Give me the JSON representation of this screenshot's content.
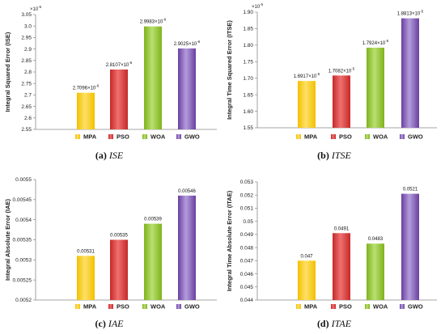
{
  "legend": [
    "MPA",
    "PSO",
    "WOA",
    "GWO"
  ],
  "colors": {
    "MPA": [
      "#ffe066",
      "#f2c000"
    ],
    "PSO": [
      "#f07070",
      "#c62828"
    ],
    "WOA": [
      "#b9e070",
      "#7fb21c"
    ],
    "GWO": [
      "#b39ddb",
      "#6a3fa0"
    ]
  },
  "chart_data": [
    {
      "type": "bar",
      "caption_letter": "(a)",
      "caption_name": "ISE",
      "ylabel": "Integral Squared Error (ISE)",
      "multiplier_base": "×10",
      "multiplier_exp": "-6",
      "categories": [
        "MPA",
        "PSO",
        "WOA",
        "GWO"
      ],
      "values": [
        2.7096,
        2.8107,
        2.9983,
        2.9025
      ],
      "data_labels": [
        {
          "base": "2.7096×10",
          "exp": "-6"
        },
        {
          "base": "2.8107×10",
          "exp": "-6"
        },
        {
          "base": "2.9983×10",
          "exp": "-6"
        },
        {
          "base": "2.9025×10",
          "exp": "-6"
        }
      ],
      "yticks": [
        "2.55",
        "2.6",
        "2.65",
        "2.7",
        "2.75",
        "2.8",
        "2.85",
        "2.9",
        "2.95",
        "3.0",
        "3.05"
      ],
      "ylim": [
        2.55,
        3.05
      ]
    },
    {
      "type": "bar",
      "caption_letter": "(b)",
      "caption_name": "ITSE",
      "ylabel": "Integral Time Squared Error (ITSE)",
      "multiplier_base": "×10",
      "multiplier_exp": "-5",
      "categories": [
        "MPA",
        "PSO",
        "WOA",
        "GWO"
      ],
      "values": [
        1.6917,
        1.7082,
        1.7924,
        1.8813
      ],
      "data_labels": [
        {
          "base": "1.6917×10",
          "exp": "-5"
        },
        {
          "base": "1.7082×10",
          "exp": "-5"
        },
        {
          "base": "1.7924×10",
          "exp": "-5"
        },
        {
          "base": "1.8813×10",
          "exp": "-5"
        }
      ],
      "yticks": [
        "1.55",
        "1.60",
        "1.65",
        "1.70",
        "1.75",
        "1.80",
        "1.85",
        "1.90"
      ],
      "ylim": [
        1.55,
        1.9
      ]
    },
    {
      "type": "bar",
      "caption_letter": "(c)",
      "caption_name": "IAE",
      "ylabel": "Integral Absolute Error (IAE)",
      "multiplier_base": "",
      "multiplier_exp": "",
      "categories": [
        "MPA",
        "PSO",
        "WOA",
        "GWO"
      ],
      "values": [
        0.00531,
        0.00535,
        0.00539,
        0.00546
      ],
      "data_labels": [
        {
          "base": "0.00531",
          "exp": ""
        },
        {
          "base": "0.00535",
          "exp": ""
        },
        {
          "base": "0.00539",
          "exp": ""
        },
        {
          "base": "0.00546",
          "exp": ""
        }
      ],
      "yticks": [
        "0.0052",
        "0.00525",
        "0.0053",
        "0.00535",
        "0.0054",
        "0.00545",
        "0.0055"
      ],
      "ylim": [
        0.0052,
        0.0055
      ]
    },
    {
      "type": "bar",
      "caption_letter": "(d)",
      "caption_name": "ITAE",
      "ylabel": "Integral Time Absolute Error (ITAE)",
      "multiplier_base": "",
      "multiplier_exp": "",
      "categories": [
        "MPA",
        "PSO",
        "WOA",
        "GWO"
      ],
      "values": [
        0.047,
        0.0491,
        0.0483,
        0.0521
      ],
      "data_labels": [
        {
          "base": "0.047",
          "exp": ""
        },
        {
          "base": "0.0491",
          "exp": ""
        },
        {
          "base": "0.0483",
          "exp": ""
        },
        {
          "base": "0.0521",
          "exp": ""
        }
      ],
      "yticks": [
        "0.044",
        "0.045",
        "0.046",
        "0.047",
        "0.048",
        "0.049",
        "0.05",
        "0.051",
        "0.052",
        "0.053"
      ],
      "ylim": [
        0.044,
        0.053
      ]
    }
  ]
}
